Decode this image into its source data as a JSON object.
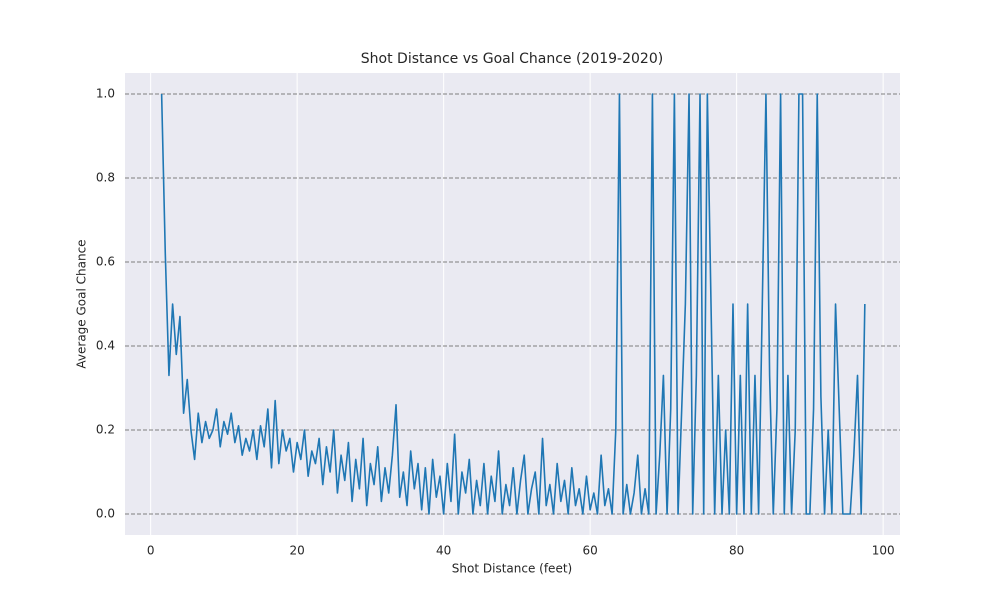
{
  "chart_data": {
    "type": "line",
    "title": "Shot Distance vs Goal Chance (2019-2020)",
    "x_label": "Shot Distance (feet)",
    "y_label": "Average Goal Chance",
    "x": [
      1.5,
      2,
      2.5,
      3,
      3.5,
      4,
      4.5,
      5,
      5.5,
      6,
      6.5,
      7,
      7.5,
      8,
      8.5,
      9,
      9.5,
      10,
      10.5,
      11,
      11.5,
      12,
      12.5,
      13,
      13.5,
      14,
      14.5,
      15,
      15.5,
      16,
      16.5,
      17,
      17.5,
      18,
      18.5,
      19,
      19.5,
      20,
      20.5,
      21,
      21.5,
      22,
      22.5,
      23,
      23.5,
      24,
      24.5,
      25,
      25.5,
      26,
      26.5,
      27,
      27.5,
      28,
      28.5,
      29,
      29.5,
      30,
      30.5,
      31,
      31.5,
      32,
      32.5,
      33,
      33.5,
      34,
      34.5,
      35,
      35.5,
      36,
      36.5,
      37,
      37.5,
      38,
      38.5,
      39,
      39.5,
      40,
      40.5,
      41,
      41.5,
      42,
      42.5,
      43,
      43.5,
      44,
      44.5,
      45,
      45.5,
      46,
      46.5,
      47,
      47.5,
      48,
      48.5,
      49,
      49.5,
      50,
      50.5,
      51,
      51.5,
      52,
      52.5,
      53,
      53.5,
      54,
      54.5,
      55,
      55.5,
      56,
      56.5,
      57,
      57.5,
      58,
      58.5,
      59,
      59.5,
      60,
      60.5,
      61,
      61.5,
      62,
      62.5,
      63,
      63.5,
      64,
      64.5,
      65,
      65.5,
      66,
      66.5,
      67,
      67.5,
      68,
      68.5,
      69,
      69.5,
      70,
      70.5,
      71,
      71.5,
      72,
      72.5,
      73,
      73.5,
      74,
      74.5,
      75,
      75.5,
      76,
      76.5,
      77,
      77.5,
      78,
      78.5,
      79,
      79.5,
      80,
      80.5,
      81,
      81.5,
      82,
      82.5,
      83,
      83.5,
      84,
      84.5,
      85,
      85.5,
      86,
      86.5,
      87,
      87.5,
      88,
      88.5,
      89,
      89.5,
      90,
      90.5,
      91,
      91.5,
      92,
      92.5,
      93,
      93.5,
      94,
      94.5,
      95,
      95.5,
      96,
      96.5,
      97,
      97.5
    ],
    "series": [
      {
        "color": "#1f77b4",
        "values": [
          1.0,
          0.62,
          0.33,
          0.5,
          0.38,
          0.47,
          0.24,
          0.32,
          0.2,
          0.13,
          0.24,
          0.17,
          0.22,
          0.18,
          0.2,
          0.25,
          0.16,
          0.22,
          0.19,
          0.24,
          0.17,
          0.21,
          0.14,
          0.18,
          0.15,
          0.2,
          0.13,
          0.21,
          0.16,
          0.25,
          0.11,
          0.27,
          0.12,
          0.2,
          0.15,
          0.18,
          0.1,
          0.17,
          0.13,
          0.2,
          0.09,
          0.15,
          0.12,
          0.18,
          0.07,
          0.16,
          0.1,
          0.2,
          0.05,
          0.14,
          0.08,
          0.17,
          0.03,
          0.13,
          0.06,
          0.18,
          0.02,
          0.12,
          0.07,
          0.16,
          0.03,
          0.11,
          0.05,
          0.14,
          0.26,
          0.04,
          0.1,
          0.02,
          0.15,
          0.06,
          0.12,
          0.01,
          0.11,
          0.0,
          0.13,
          0.04,
          0.09,
          0.0,
          0.12,
          0.03,
          0.19,
          0.0,
          0.1,
          0.05,
          0.13,
          0.0,
          0.08,
          0.02,
          0.12,
          0.0,
          0.09,
          0.03,
          0.15,
          0.0,
          0.07,
          0.02,
          0.11,
          0.0,
          0.08,
          0.14,
          0.0,
          0.06,
          0.1,
          0.0,
          0.18,
          0.02,
          0.07,
          0.0,
          0.12,
          0.03,
          0.08,
          0.0,
          0.11,
          0.02,
          0.06,
          0.0,
          0.09,
          0.01,
          0.05,
          0.0,
          0.14,
          0.02,
          0.06,
          0.0,
          0.2,
          1.0,
          0.0,
          0.07,
          0.0,
          0.05,
          0.14,
          0.0,
          0.06,
          0.0,
          1.0,
          0.0,
          0.14,
          0.33,
          0.0,
          0.25,
          1.0,
          0.0,
          0.25,
          0.5,
          1.0,
          0.0,
          0.33,
          1.0,
          0.0,
          1.0,
          0.5,
          0.0,
          0.33,
          0.0,
          0.2,
          0.0,
          0.5,
          0.0,
          0.33,
          0.0,
          0.5,
          0.0,
          0.33,
          0.0,
          0.5,
          1.0,
          0.33,
          0.0,
          0.25,
          1.0,
          0.0,
          0.33,
          0.0,
          0.2,
          1.0,
          1.0,
          0.0,
          0.0,
          0.25,
          1.0,
          0.28,
          0.0,
          0.2,
          0.0,
          0.5,
          0.25,
          0.0,
          0.0,
          0.0,
          0.14,
          0.33,
          0.0,
          0.5
        ]
      }
    ],
    "xlim": [
      -3.5,
      102.3
    ],
    "ylim": [
      -0.05,
      1.05
    ],
    "xticks": [
      0,
      20,
      40,
      60,
      80,
      100
    ],
    "yticks": [
      {
        "value": 0,
        "label": "0.0"
      },
      {
        "value": 0.2,
        "label": "0.2"
      },
      {
        "value": 0.4,
        "label": "0.4"
      },
      {
        "value": 0.6,
        "label": "0.6"
      },
      {
        "value": 0.8,
        "label": "0.8"
      },
      {
        "value": 1,
        "label": "1.0"
      }
    ],
    "grid": true
  }
}
